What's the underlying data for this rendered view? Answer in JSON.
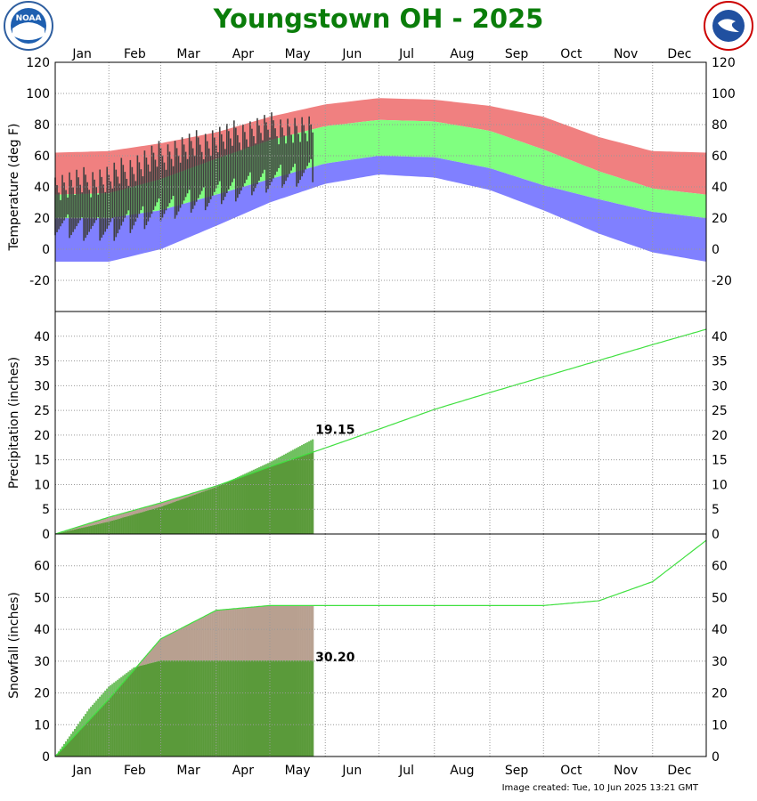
{
  "title": "Youngstown OH - 2025",
  "footer": "Image created: Tue, 10 Jun 2025 13:21 GMT",
  "logos": {
    "left": "NOAA",
    "right": "NATIONAL WEATHER SERVICE"
  },
  "colors": {
    "record_high": "#f08080",
    "normal_band": "#80ff80",
    "record_low": "#8080ff",
    "observed_temp": "#404040",
    "obs_precip_above": "#70c060",
    "obs_precip_below": "#b8a090",
    "observed_fill": "#5a9a3a",
    "normal_line": "#40e040",
    "title": "#0a7d0a"
  },
  "chart_data": [
    {
      "type": "area",
      "ylabel": "Temperature (deg F)",
      "ylim": [
        -40,
        120
      ],
      "yticks": [
        "120",
        "100",
        "80",
        "60",
        "40",
        "20",
        "0",
        "-20"
      ],
      "months": [
        "Jan",
        "Feb",
        "Mar",
        "Apr",
        "May",
        "Jun",
        "Jul",
        "Aug",
        "Sep",
        "Oct",
        "Nov",
        "Dec"
      ],
      "x": [
        1,
        31,
        60,
        91,
        121,
        152,
        182,
        213,
        244,
        274,
        305,
        335,
        365
      ],
      "series": [
        {
          "values": [
            62,
            63,
            68,
            75,
            85,
            93,
            97,
            96,
            92,
            85,
            72,
            63,
            62
          ]
        },
        {
          "values": [
            35,
            36,
            45,
            58,
            70,
            79,
            83,
            82,
            76,
            64,
            50,
            39,
            35
          ]
        },
        {
          "values": [
            20,
            20,
            25,
            35,
            45,
            55,
            60,
            59,
            52,
            41,
            32,
            24,
            20
          ]
        },
        {
          "values": [
            -8,
            -8,
            0,
            15,
            30,
            42,
            48,
            46,
            38,
            25,
            10,
            -2,
            -8
          ]
        }
      ],
      "observed": {
        "days": [
          1,
          31,
          60,
          91,
          121,
          145
        ],
        "hi": [
          40,
          45,
          60,
          70,
          78,
          75
        ],
        "lo": [
          15,
          12,
          25,
          35,
          45,
          50
        ]
      },
      "grid": true
    },
    {
      "type": "area",
      "ylabel": "Precipitation (inches)",
      "ylim": [
        0,
        45
      ],
      "yticks": [
        "40",
        "35",
        "30",
        "25",
        "20",
        "15",
        "10",
        "5",
        "0"
      ],
      "x": [
        1,
        31,
        60,
        91,
        121,
        152,
        182,
        213,
        244,
        274,
        305,
        335,
        365
      ],
      "series": [
        {
          "values": [
            0,
            3.4,
            6.3,
            9.7,
            13.6,
            17.4,
            21.2,
            25.2,
            28.6,
            31.8,
            35.1,
            38.3,
            41.4
          ]
        }
      ],
      "observed": {
        "days": [
          1,
          31,
          60,
          91,
          121,
          145
        ],
        "values": [
          0,
          2.5,
          5.5,
          9.5,
          14.5,
          19.15
        ]
      },
      "end_label": "19.15",
      "grid": true
    },
    {
      "type": "area",
      "ylabel": "Snowfall (inches)",
      "ylim": [
        0,
        70
      ],
      "yticks": [
        "60",
        "50",
        "40",
        "30",
        "20",
        "10",
        "0"
      ],
      "months": [
        "Jan",
        "Feb",
        "Mar",
        "Apr",
        "May",
        "Jun",
        "Jul",
        "Aug",
        "Sep",
        "Oct",
        "Nov",
        "Dec"
      ],
      "x": [
        1,
        31,
        60,
        91,
        121,
        152,
        182,
        213,
        244,
        274,
        305,
        335,
        365
      ],
      "series": [
        {
          "values": [
            0,
            18,
            37,
            46,
            47.5,
            47.5,
            47.5,
            47.5,
            47.5,
            47.5,
            49,
            55,
            68
          ]
        }
      ],
      "observed": {
        "days": [
          1,
          20,
          31,
          45,
          60,
          145
        ],
        "values": [
          0,
          15,
          22,
          28,
          30.2,
          30.2
        ]
      },
      "end_label": "30.20",
      "grid": true
    }
  ]
}
